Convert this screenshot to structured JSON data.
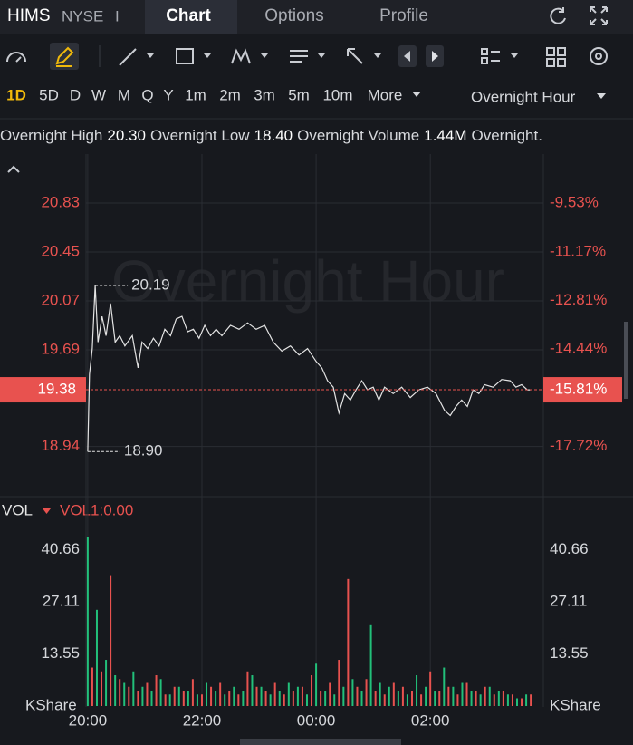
{
  "header": {
    "symbol": "HIMS",
    "exchange": "NYSE",
    "separator": "I",
    "tabs": [
      "Chart",
      "Options",
      "Profile"
    ]
  },
  "timeframes": {
    "items": [
      "1D",
      "5D",
      "D",
      "W",
      "M",
      "Q",
      "Y",
      "1m",
      "2m",
      "3m",
      "5m",
      "10m",
      "More"
    ],
    "session": "Overnight Hour"
  },
  "stats": [
    "Overnight High",
    "20.30",
    "Overnight Low",
    "18.40",
    "Overnight Volume",
    "1.44M",
    "Overnight."
  ],
  "price_chart": {
    "type": "line",
    "watermark": "Overnight Hour",
    "color": "#e4e4e4",
    "x": [
      0,
      0.03,
      0.08,
      0.13,
      0.18,
      0.25,
      0.32,
      0.4,
      0.48,
      0.56,
      0.65,
      0.78,
      0.88,
      0.95,
      1.05,
      1.15,
      1.25,
      1.35,
      1.45,
      1.55,
      1.65,
      1.75,
      1.85,
      1.95,
      2.05,
      2.15,
      2.25,
      2.35,
      2.5,
      2.65,
      2.8,
      2.95,
      3.1,
      3.25,
      3.4,
      3.55,
      3.7,
      3.85,
      4,
      4.1,
      4.2,
      4.3,
      4.4,
      4.5,
      4.6,
      4.7,
      4.8,
      4.9,
      5,
      5.1,
      5.2,
      5.35,
      5.5,
      5.65,
      5.8,
      5.95,
      6.1,
      6.25,
      6.35,
      6.45,
      6.55,
      6.65,
      6.75,
      6.85,
      6.95,
      7.1,
      7.25,
      7.4,
      7.5,
      7.6,
      7.7,
      7.75
    ],
    "values": [
      18.9,
      19.5,
      19.7,
      20.19,
      19.75,
      19.95,
      19.8,
      20.05,
      19.75,
      19.8,
      19.72,
      19.8,
      19.55,
      19.75,
      19.7,
      19.78,
      19.72,
      19.85,
      19.8,
      19.93,
      19.95,
      19.83,
      19.85,
      19.78,
      19.88,
      19.8,
      19.85,
      19.8,
      19.88,
      19.85,
      19.9,
      19.85,
      19.88,
      19.75,
      19.68,
      19.72,
      19.65,
      19.7,
      19.6,
      19.55,
      19.45,
      19.4,
      19.2,
      19.35,
      19.3,
      19.38,
      19.45,
      19.38,
      19.4,
      19.3,
      19.4,
      19.35,
      19.4,
      19.32,
      19.38,
      19.4,
      19.35,
      19.22,
      19.18,
      19.25,
      19.3,
      19.25,
      19.38,
      19.35,
      19.42,
      19.4,
      19.46,
      19.45,
      19.4,
      19.42,
      19.38,
      19.38
    ],
    "xlim": [
      -0.03,
      7.98
    ],
    "xticks": [
      {
        "value": 0,
        "label": "20:00"
      },
      {
        "value": 2,
        "label": "22:00"
      },
      {
        "value": 4,
        "label": "00:00"
      },
      {
        "value": 6,
        "label": "02:00"
      }
    ],
    "ylim": [
      18.55,
      21.21
    ],
    "yticks": [
      18.94,
      19.69,
      20.07,
      20.45,
      20.83
    ],
    "y2lim": [
      -19.41,
      -7.88
    ],
    "y2ticks": [
      {
        "value": -17.72,
        "label": "-17.72%"
      },
      {
        "value": -14.44,
        "label": "-14.44%"
      },
      {
        "value": -12.81,
        "label": "-12.81%"
      },
      {
        "value": -11.17,
        "label": "-11.17%"
      },
      {
        "value": -9.53,
        "label": "-9.53%"
      }
    ],
    "high": {
      "x": 0.13,
      "value": 20.19
    },
    "low": {
      "x": 0,
      "value": 18.9,
      "label": "18.90"
    },
    "last": 19.38,
    "last_change": {
      "value": -15.81,
      "label": "-15.81%"
    }
  },
  "volume_chart": {
    "type": "bar",
    "indicator": "VOL",
    "indicator_value": "VOL1:0.00",
    "unit": "KShare",
    "ylim": [
      0,
      44.5
    ],
    "yticks": [
      13.55,
      27.11,
      40.66
    ],
    "series": [
      {
        "color": "#22c07a",
        "x": [
          0,
          0.16,
          0.32,
          0.48,
          0.64,
          0.8,
          0.96,
          1.12,
          1.28,
          1.44,
          1.6,
          1.76,
          1.92,
          2.08,
          2.24,
          2.4,
          2.56,
          2.72,
          2.88,
          3.04,
          3.2,
          3.36,
          3.52,
          3.68,
          3.84,
          4,
          4.16,
          4.32,
          4.48,
          4.64,
          4.8,
          4.96,
          5.12,
          5.28,
          5.44,
          5.6,
          5.76,
          5.92,
          6.08,
          6.24,
          6.4,
          6.56,
          6.72,
          6.88,
          7.04,
          7.2,
          7.36,
          7.52,
          7.68
        ],
        "values": [
          44,
          25,
          12,
          8,
          6,
          9,
          5,
          4,
          7,
          3,
          5,
          4,
          3,
          6,
          4,
          3,
          5,
          4,
          8,
          5,
          3,
          4,
          6,
          5,
          3,
          11,
          4,
          3,
          5,
          7,
          4,
          21,
          6,
          5,
          4,
          3,
          8,
          5,
          4,
          10,
          5,
          6,
          4,
          3,
          5,
          4,
          3,
          2,
          3
        ]
      },
      {
        "color": "#e8524f",
        "x": [
          0.08,
          0.24,
          0.4,
          0.56,
          0.72,
          0.88,
          1.04,
          1.2,
          1.36,
          1.52,
          1.68,
          1.84,
          2,
          2.16,
          2.32,
          2.48,
          2.64,
          2.8,
          2.96,
          3.12,
          3.28,
          3.44,
          3.6,
          3.76,
          3.92,
          4.08,
          4.24,
          4.4,
          4.56,
          4.72,
          4.88,
          5.04,
          5.2,
          5.36,
          5.52,
          5.68,
          5.84,
          6,
          6.16,
          6.32,
          6.48,
          6.64,
          6.8,
          6.96,
          7.12,
          7.28,
          7.44,
          7.6,
          7.76
        ],
        "values": [
          10,
          9,
          34,
          7,
          5,
          4,
          6,
          8,
          3,
          5,
          4,
          7,
          3,
          5,
          6,
          4,
          3,
          9,
          5,
          4,
          6,
          3,
          4,
          5,
          8,
          4,
          6,
          12,
          33,
          5,
          7,
          4,
          3,
          6,
          5,
          4,
          3,
          9,
          4,
          5,
          3,
          6,
          4,
          5,
          3,
          4,
          3,
          2,
          3
        ]
      }
    ]
  }
}
